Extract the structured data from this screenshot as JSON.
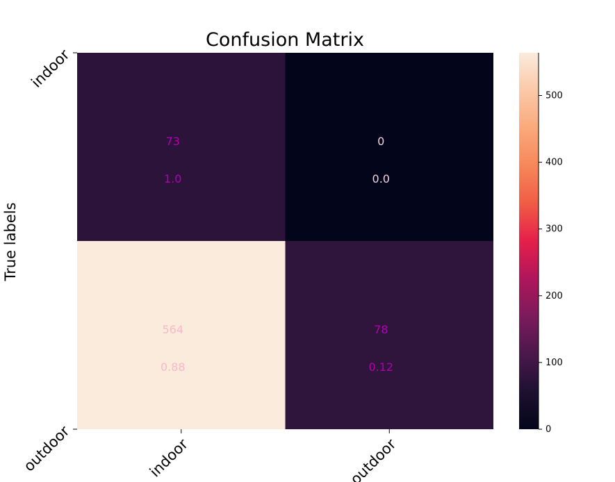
{
  "chart_data": {
    "type": "heatmap",
    "title": "Confusion Matrix",
    "ylabel": "True labels",
    "xlabel": "",
    "x_tick_labels": [
      "indoor",
      "outdoor"
    ],
    "y_tick_labels": [
      "indoor",
      "outdoor"
    ],
    "counts": [
      [
        73,
        0
      ],
      [
        564,
        78
      ]
    ],
    "count_labels": [
      [
        "73",
        "0"
      ],
      [
        "564",
        "78"
      ]
    ],
    "ratio_labels": [
      [
        "1.0",
        "0.0"
      ],
      [
        "0.88",
        "0.12"
      ]
    ],
    "colorbar": {
      "min": 0,
      "max": 564,
      "ticks": [
        0,
        100,
        200,
        300,
        400,
        500
      ],
      "tick_labels": [
        "0",
        "100",
        "200",
        "300",
        "400",
        "500"
      ],
      "colormap": "rocket",
      "placement": "right"
    },
    "grid": false
  }
}
